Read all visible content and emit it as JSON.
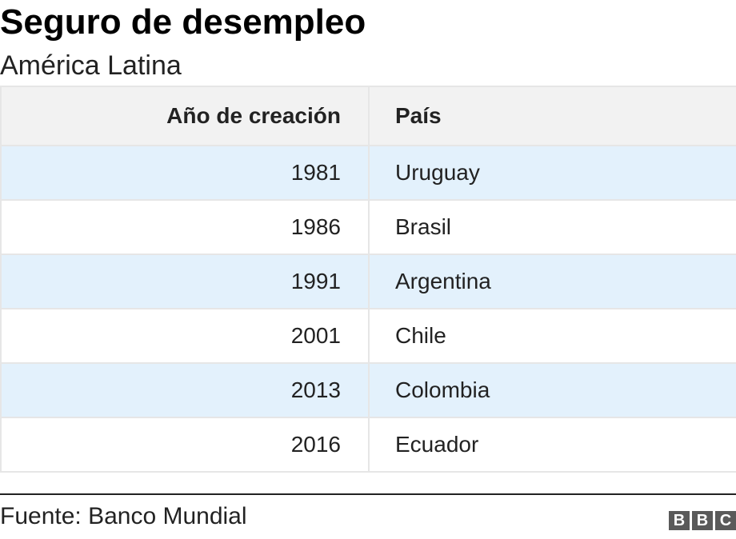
{
  "header": {
    "title": "Seguro de desempleo",
    "subtitle": "América Latina"
  },
  "chart_data": {
    "type": "table",
    "title": "Seguro de desempleo",
    "subtitle": "América Latina",
    "columns": [
      "Año de creación",
      "País"
    ],
    "rows": [
      [
        "1981",
        "Uruguay"
      ],
      [
        "1986",
        "Brasil"
      ],
      [
        "1991",
        "Argentina"
      ],
      [
        "2001",
        "Chile"
      ],
      [
        "2013",
        "Colombia"
      ],
      [
        "2016",
        "Ecuador"
      ]
    ],
    "colors": {
      "header_bg": "#f2f2f2",
      "stripe_bg": "#e3f1fc",
      "row_bg": "#ffffff"
    }
  },
  "footer": {
    "source": "Fuente: Banco Mundial",
    "logo_letters": [
      "B",
      "B",
      "C"
    ]
  }
}
